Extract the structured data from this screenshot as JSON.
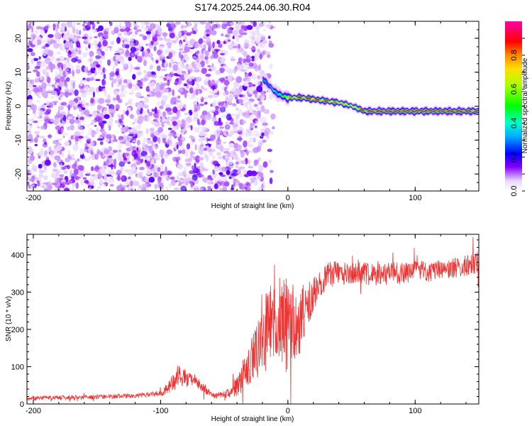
{
  "page_title": "S174.2025.244.06.30.R04",
  "chart_data": [
    {
      "type": "heatmap",
      "name": "spectrogram",
      "xlabel": "Height of straight line (km)",
      "ylabel": "Frequency (Hz)",
      "xlim": [
        -205,
        150
      ],
      "ylim": [
        -25,
        25
      ],
      "xticks": [
        -200,
        -100,
        0,
        100
      ],
      "xtick_labels": [
        "-200",
        "-100",
        "0",
        "100"
      ],
      "yticks": [
        -20,
        -10,
        0,
        10,
        20
      ],
      "ytick_labels": [
        "-20",
        "-10",
        "0",
        "10",
        "20"
      ],
      "colorbar": {
        "label": "Normalized spectral amplitude",
        "range": [
          0,
          1
        ],
        "ticks": [
          0.0,
          0.2,
          0.4,
          0.6,
          0.8
        ],
        "tick_labels": [
          "0.0",
          "0.2",
          "0.4",
          "0.6",
          "0.8"
        ]
      },
      "ridge": {
        "x": [
          -20,
          -15,
          -10,
          -5,
          0,
          5,
          10,
          20,
          30,
          40,
          50,
          60,
          80,
          100,
          120,
          150
        ],
        "freq": [
          8,
          6,
          4,
          3,
          2.5,
          2.5,
          2.5,
          2,
          1.5,
          1,
          0,
          -1.5,
          -1.5,
          -1.5,
          -1.5,
          -1.5
        ],
        "amplitude": [
          0.3,
          0.35,
          0.4,
          0.5,
          0.8,
          0.85,
          0.9,
          0.9,
          0.9,
          0.8,
          0.7,
          0.95,
          1.0,
          1.0,
          1.0,
          0.95
        ]
      }
    },
    {
      "type": "line",
      "name": "snr",
      "xlabel": "Height of straight line (km)",
      "ylabel": "SNR (10 * v/v)",
      "xlim": [
        -205,
        150
      ],
      "ylim": [
        0,
        455
      ],
      "xticks": [
        -200,
        -100,
        0,
        100
      ],
      "xtick_labels": [
        "-200",
        "-100",
        "0",
        "100"
      ],
      "yticks": [
        0,
        100,
        200,
        300,
        400
      ],
      "ytick_labels": [
        "0",
        "100",
        "200",
        "300",
        "400"
      ],
      "color": "#ee3333",
      "series": [
        {
          "name": "SNR",
          "x": [
            -205,
            -180,
            -160,
            -140,
            -120,
            -100,
            -95,
            -90,
            -85,
            -80,
            -75,
            -70,
            -65,
            -60,
            -55,
            -50,
            -45,
            -40,
            -35,
            -30,
            -25,
            -20,
            -15,
            -10,
            -5,
            0,
            5,
            10,
            15,
            20,
            25,
            30,
            35,
            40,
            50,
            60,
            70,
            80,
            90,
            100,
            110,
            120,
            130,
            140,
            150
          ],
          "y": [
            15,
            17,
            18,
            20,
            22,
            28,
            40,
            60,
            75,
            70,
            65,
            55,
            40,
            25,
            22,
            25,
            30,
            50,
            80,
            110,
            140,
            180,
            210,
            230,
            220,
            200,
            210,
            230,
            260,
            300,
            320,
            340,
            350,
            350,
            350,
            350,
            345,
            350,
            350,
            355,
            355,
            360,
            365,
            370,
            380
          ],
          "noise": [
            6,
            6,
            6,
            6,
            6,
            8,
            15,
            25,
            30,
            25,
            20,
            15,
            12,
            8,
            8,
            10,
            15,
            30,
            45,
            60,
            80,
            100,
            120,
            120,
            130,
            120,
            110,
            90,
            70,
            50,
            40,
            35,
            35,
            30,
            30,
            30,
            30,
            30,
            30,
            30,
            28,
            28,
            28,
            28,
            30
          ]
        }
      ]
    }
  ]
}
